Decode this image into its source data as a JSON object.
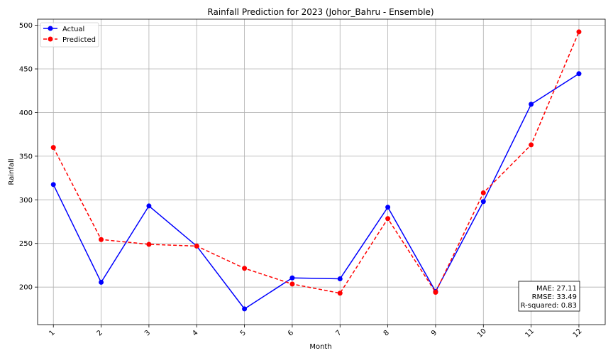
{
  "chart_data": {
    "type": "line",
    "title": "Rainfall Prediction for 2023 (Johor_Bahru - Ensemble)",
    "xlabel": "Month",
    "ylabel": "Rainfall",
    "x": [
      1,
      2,
      3,
      4,
      5,
      6,
      7,
      8,
      9,
      10,
      11,
      12
    ],
    "x_tick_labels": [
      "1",
      "2",
      "3",
      "4",
      "5",
      "6",
      "7",
      "8",
      "9",
      "10",
      "11",
      "12"
    ],
    "ylim": [
      157,
      507
    ],
    "y_ticks": [
      200,
      250,
      300,
      350,
      400,
      450,
      500
    ],
    "y_tick_labels": [
      "200",
      "250",
      "300",
      "350",
      "400",
      "450",
      "500"
    ],
    "grid": true,
    "legend_position": "top-left",
    "series": [
      {
        "name": "Actual",
        "color": "#0000ff",
        "style": "solid",
        "values": [
          317.5,
          205.5,
          293.0,
          247.0,
          175.0,
          210.5,
          209.5,
          291.5,
          195.0,
          298.0,
          409.5,
          444.5
        ]
      },
      {
        "name": "Predicted",
        "color": "#ff0000",
        "style": "dashed",
        "values": [
          360.0,
          254.5,
          249.0,
          247.0,
          221.5,
          203.5,
          193.0,
          278.5,
          194.0,
          308.0,
          363.0,
          492.5
        ]
      }
    ],
    "metrics": {
      "lines": [
        "MAE: 27.11",
        "RMSE: 33.49",
        "R-squared: 0.83"
      ],
      "position": "bottom-right"
    }
  }
}
